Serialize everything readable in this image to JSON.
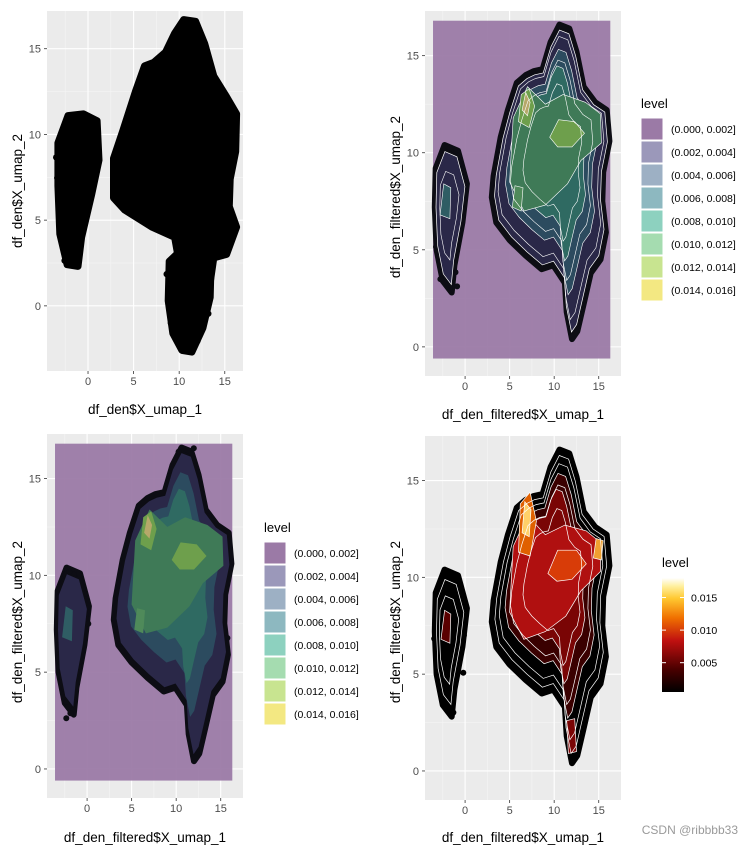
{
  "chart_data": [
    {
      "type": "scatter",
      "xlabel": "df_den$X_umap_1",
      "ylabel": "df_den$X_umap_2",
      "xlim": [
        -4.5,
        17
      ],
      "ylim": [
        -3.8,
        17.2
      ],
      "x_ticks": [
        0,
        5,
        10,
        15
      ],
      "y_ticks": [
        0,
        5,
        10,
        15
      ],
      "point_color": "#000000",
      "clusters": [
        {
          "x": [
            -3.3,
            1.2
          ],
          "y": [
            2.2,
            11.2
          ]
        },
        {
          "x": [
            2.7,
            16.4
          ],
          "y": [
            1.0,
            16.8
          ]
        },
        {
          "x": [
            8.8,
            13.6
          ],
          "y": [
            -2.7,
            3.3
          ]
        }
      ]
    },
    {
      "type": "density_contour",
      "xlabel": "df_den_filtered$X_umap_1",
      "ylabel": "df_den_filtered$X_umap_2",
      "xlim": [
        -4.5,
        17.5
      ],
      "ylim": [
        -1.5,
        17.3
      ],
      "x_ticks": [
        0,
        5,
        10,
        15
      ],
      "y_ticks": [
        0,
        5,
        10,
        15
      ],
      "legend_title": "level",
      "legend_position": "right",
      "levels": [
        "(0.000, 0.002]",
        "(0.002, 0.004]",
        "(0.004, 0.006]",
        "(0.006, 0.008]",
        "(0.008, 0.010]",
        "(0.010, 0.012]",
        "(0.012, 0.014]",
        "(0.014, 0.016]"
      ],
      "colors": [
        "#9b7aa6",
        "#9b98ba",
        "#9db0c4",
        "#8db8c0",
        "#8dd1bf",
        "#a5dcb0",
        "#c8e490",
        "#f3e882"
      ],
      "hotspots": [
        {
          "x": 6.8,
          "y": 12.7
        },
        {
          "x": 11.2,
          "y": 11.4
        },
        {
          "x": -2.2,
          "y": 7.5
        }
      ]
    },
    {
      "type": "density_filled",
      "xlabel": "df_den_filtered$X_umap_1",
      "ylabel": "df_den_filtered$X_umap_2",
      "xlim": [
        -4.5,
        17.5
      ],
      "ylim": [
        -1.5,
        17.3
      ],
      "x_ticks": [
        0,
        5,
        10,
        15
      ],
      "y_ticks": [
        0,
        5,
        10,
        15
      ],
      "legend_title": "level",
      "legend_position": "right",
      "levels": [
        "(0.000, 0.002]",
        "(0.002, 0.004]",
        "(0.004, 0.006]",
        "(0.006, 0.008]",
        "(0.008, 0.010]",
        "(0.010, 0.012]",
        "(0.012, 0.014]",
        "(0.014, 0.016]"
      ],
      "colors": [
        "#9b7aa6",
        "#9b98ba",
        "#9db0c4",
        "#8db8c0",
        "#8dd1bf",
        "#a5dcb0",
        "#c8e490",
        "#f3e882"
      ]
    },
    {
      "type": "density_heat",
      "xlabel": "df_den_filtered$X_umap_1",
      "ylabel": "df_den_filtered$X_umap_2",
      "xlim": [
        -4.5,
        17.5
      ],
      "ylim": [
        -1.5,
        17.3
      ],
      "x_ticks": [
        0,
        5,
        10,
        15
      ],
      "y_ticks": [
        0,
        5,
        10,
        15
      ],
      "legend_title": "level",
      "legend_position": "right",
      "colorbar_ticks": [
        0.015,
        0.01,
        0.005
      ],
      "colorbar_tick_labels": [
        "0.015",
        "0.010",
        "0.005"
      ],
      "colorbar_range": [
        0.0005,
        0.018
      ],
      "colorscale": [
        "#000000",
        "#4a0000",
        "#c01010",
        "#f07000",
        "#ffc830",
        "#fff0a0",
        "#ffffff"
      ]
    }
  ],
  "watermark": "CSDN @ribbbb33"
}
